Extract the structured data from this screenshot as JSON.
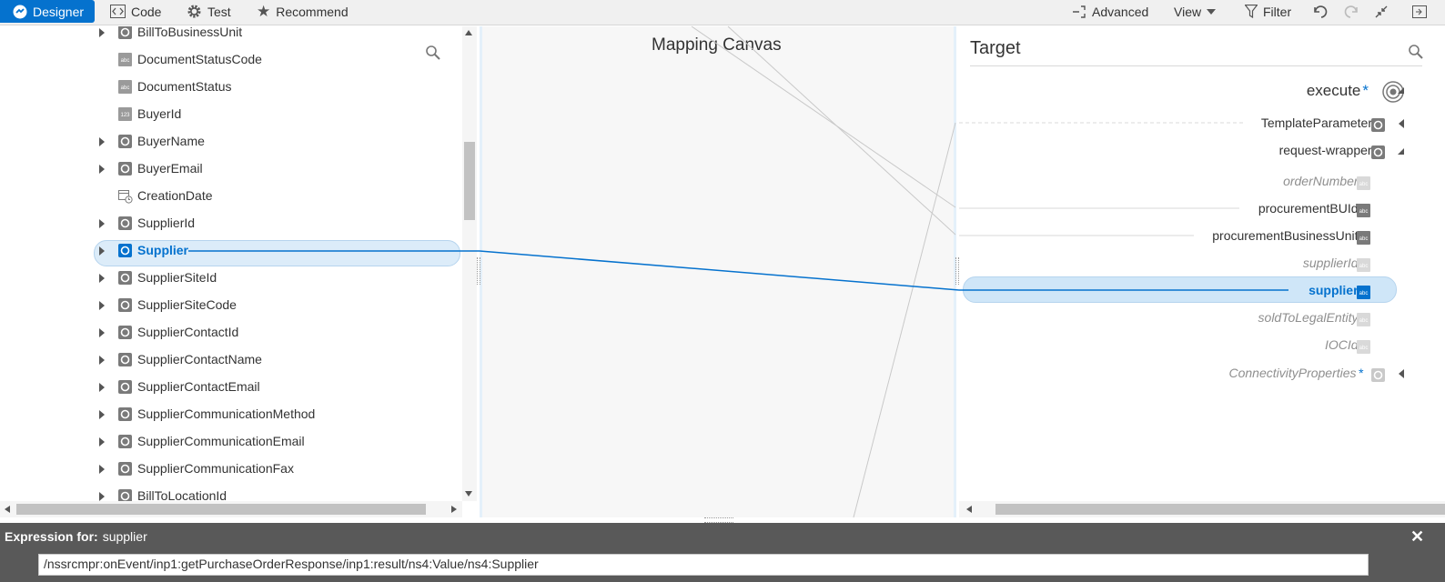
{
  "toolbar": {
    "designer": "Designer",
    "code": "Code",
    "test": "Test",
    "recommend": "Recommend",
    "advanced": "Advanced",
    "view": "View",
    "filter": "Filter"
  },
  "source": {
    "items": [
      {
        "label": "BillToBusinessUnit",
        "type": "object",
        "expandable": true
      },
      {
        "label": "DocumentStatusCode",
        "type": "string",
        "expandable": false
      },
      {
        "label": "DocumentStatus",
        "type": "string",
        "expandable": false
      },
      {
        "label": "BuyerId",
        "type": "number",
        "expandable": false
      },
      {
        "label": "BuyerName",
        "type": "object",
        "expandable": true
      },
      {
        "label": "BuyerEmail",
        "type": "object",
        "expandable": true
      },
      {
        "label": "CreationDate",
        "type": "date",
        "expandable": false
      },
      {
        "label": "SupplierId",
        "type": "object",
        "expandable": true
      },
      {
        "label": "Supplier",
        "type": "object",
        "expandable": true,
        "selected": true
      },
      {
        "label": "SupplierSiteId",
        "type": "object",
        "expandable": true
      },
      {
        "label": "SupplierSiteCode",
        "type": "object",
        "expandable": true
      },
      {
        "label": "SupplierContactId",
        "type": "object",
        "expandable": true
      },
      {
        "label": "SupplierContactName",
        "type": "object",
        "expandable": true
      },
      {
        "label": "SupplierContactEmail",
        "type": "object",
        "expandable": true
      },
      {
        "label": "SupplierCommunicationMethod",
        "type": "object",
        "expandable": true
      },
      {
        "label": "SupplierCommunicationEmail",
        "type": "object",
        "expandable": true
      },
      {
        "label": "SupplierCommunicationFax",
        "type": "object",
        "expandable": true
      },
      {
        "label": "BillToLocationId",
        "type": "object",
        "expandable": true
      }
    ]
  },
  "canvas": {
    "title": "Mapping Canvas"
  },
  "target": {
    "title": "Target",
    "items": [
      {
        "label": "execute",
        "required": true,
        "optional": false
      },
      {
        "label": "TemplateParameters",
        "required": false,
        "optional": false
      },
      {
        "label": "request-wrapper",
        "required": true,
        "optional": false
      },
      {
        "label": "orderNumber",
        "required": true,
        "optional": true
      },
      {
        "label": "procurementBUId",
        "required": true,
        "optional": false
      },
      {
        "label": "procurementBusinessUnit",
        "required": true,
        "optional": false
      },
      {
        "label": "supplierId",
        "required": true,
        "optional": true
      },
      {
        "label": "supplier",
        "required": true,
        "optional": false,
        "selected": true
      },
      {
        "label": "soldToLegalEntity",
        "required": true,
        "optional": true
      },
      {
        "label": "IOCId",
        "required": true,
        "optional": true
      },
      {
        "label": "ConnectivityProperties",
        "required": true,
        "optional": true
      }
    ],
    "required_mark": "*"
  },
  "expression": {
    "header_prefix": "Expression for:",
    "field": "supplier",
    "value": "/nssrcmpr:onEvent/inp1:getPurchaseOrderResponse/inp1:result/ns4:Value/ns4:Supplier"
  },
  "colors": {
    "accent": "#0572ce",
    "selected_bg": "#dcecf9",
    "expr_bar": "#595959"
  }
}
